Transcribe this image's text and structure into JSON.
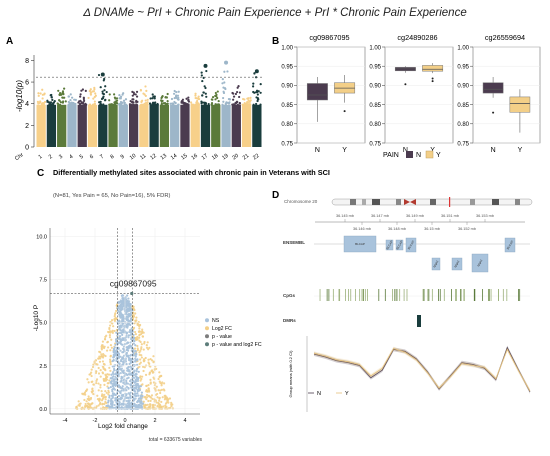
{
  "figure_title": "Δ DNAMe ~ PrI + Chronic Pain Experience + PrI * Chronic Pain Experience",
  "panel_letters": [
    "A",
    "B",
    "C",
    "D"
  ],
  "chart_data": [
    {
      "panel": "A",
      "type": "scatter",
      "subtype": "manhattan",
      "ylabel": "-log10(p)",
      "x_tick_labels": [
        "Chr",
        "1",
        "2",
        "3",
        "4",
        "5",
        "6",
        "7",
        "8",
        "9",
        "10",
        "11",
        "12",
        "13",
        "14",
        "15",
        "16",
        "17",
        "18",
        "19",
        "20",
        "21",
        "22"
      ],
      "ylim": [
        0,
        8.5
      ],
      "y_ticks": [
        0,
        2,
        4,
        6,
        8
      ],
      "y_tick_labels": [
        "0",
        "2",
        "4",
        "6",
        "8"
      ],
      "threshold": 6.45,
      "chromosomes": [
        {
          "chr": "1",
          "max": 5.3,
          "color": "#f7d08a"
        },
        {
          "chr": "2",
          "max": 4.9,
          "color": "#1a3d3d"
        },
        {
          "chr": "3",
          "max": 5.4,
          "color": "#5b7a3a"
        },
        {
          "chr": "4",
          "max": 4.9,
          "color": "#9db6c9"
        },
        {
          "chr": "5",
          "max": 5.4,
          "color": "#4b3b4f"
        },
        {
          "chr": "6",
          "max": 5.5,
          "color": "#f7d08a"
        },
        {
          "chr": "7",
          "max": 6.7,
          "color": "#1a3d3d"
        },
        {
          "chr": "8",
          "max": 4.9,
          "color": "#5b7a3a"
        },
        {
          "chr": "9",
          "max": 5.2,
          "color": "#9db6c9"
        },
        {
          "chr": "10",
          "max": 5.2,
          "color": "#4b3b4f"
        },
        {
          "chr": "11",
          "max": 5.9,
          "color": "#f7d08a"
        },
        {
          "chr": "12",
          "max": 4.9,
          "color": "#1a3d3d"
        },
        {
          "chr": "13",
          "max": 4.9,
          "color": "#5b7a3a"
        },
        {
          "chr": "14",
          "max": 5.2,
          "color": "#9db6c9"
        },
        {
          "chr": "15",
          "max": 4.7,
          "color": "#4b3b4f"
        },
        {
          "chr": "16",
          "max": 5.0,
          "color": "#f7d08a"
        },
        {
          "chr": "17",
          "max": 7.5,
          "color": "#1a3d3d"
        },
        {
          "chr": "18",
          "max": 5.5,
          "color": "#5b7a3a"
        },
        {
          "chr": "19",
          "max": 7.8,
          "color": "#9db6c9"
        },
        {
          "chr": "20",
          "max": 5.8,
          "color": "#4b3b4f"
        },
        {
          "chr": "21",
          "max": 4.6,
          "color": "#f7d08a"
        },
        {
          "chr": "22",
          "max": 7.0,
          "color": "#1a3d3d"
        }
      ]
    },
    {
      "panel": "B",
      "type": "box",
      "xlabel": "",
      "ylabel": "",
      "ylim": [
        0.75,
        1.0
      ],
      "y_ticks": [
        0.75,
        0.8,
        0.85,
        0.9,
        0.95,
        1.0
      ],
      "y_tick_labels": [
        "0.75",
        "0.80",
        "0.85",
        "0.90",
        "0.95",
        "1.00"
      ],
      "categories": [
        "N",
        "Y"
      ],
      "legend_title": "PAIN",
      "legend": [
        "N",
        "Y"
      ],
      "colors": {
        "N": "#4b3b4f",
        "Y": "#f3cf88"
      },
      "facets": [
        {
          "title": "cg09867095",
          "boxes": [
            {
              "group": "N",
              "min": 0.805,
              "q1": 0.862,
              "median": 0.875,
              "q3": 0.905,
              "max": 0.922,
              "outliers": []
            },
            {
              "group": "Y",
              "min": 0.855,
              "q1": 0.88,
              "median": 0.893,
              "q3": 0.907,
              "max": 0.927,
              "outliers": [
                0.833
              ]
            }
          ]
        },
        {
          "title": "cg24890286",
          "boxes": [
            {
              "group": "N",
              "min": 0.933,
              "q1": 0.938,
              "median": 0.943,
              "q3": 0.947,
              "max": 0.95,
              "outliers": [
                0.903
              ]
            },
            {
              "group": "Y",
              "min": 0.932,
              "q1": 0.937,
              "median": 0.942,
              "q3": 0.952,
              "max": 0.958,
              "outliers": [
                0.918,
                0.911
              ]
            }
          ]
        },
        {
          "title": "cg26559694",
          "boxes": [
            {
              "group": "N",
              "min": 0.868,
              "q1": 0.88,
              "median": 0.89,
              "q3": 0.907,
              "max": 0.922,
              "outliers": [
                0.829
              ]
            },
            {
              "group": "Y",
              "min": 0.777,
              "q1": 0.83,
              "median": 0.853,
              "q3": 0.87,
              "max": 0.89,
              "outliers": []
            }
          ]
        }
      ]
    },
    {
      "panel": "C",
      "type": "scatter",
      "subtype": "volcano",
      "title": "Differentially methylated sites associated with chronic pain in Veterans with SCI",
      "subtitle": "(N=81, Yes Pain = 65, No Pain=16), 5% FDR)",
      "xlabel": "Log2 fold change",
      "ylabel": "-Log10 P",
      "xlim": [
        -5,
        5
      ],
      "ylim": [
        -0.3,
        10.5
      ],
      "x_ticks": [
        -4,
        -2,
        0,
        2,
        4
      ],
      "y_ticks": [
        0,
        2.5,
        5,
        7.5,
        10
      ],
      "y_tick_labels": [
        "0.0",
        "2.5",
        "5.0",
        "7.5",
        "10.0"
      ],
      "threshold_p": 6.7,
      "fc_cutoffs": [
        -0.5,
        0.5
      ],
      "highlight": {
        "label": "cg09867095",
        "x": 0.45,
        "y": 6.7
      },
      "legend": [
        "NS",
        "Log2 FC",
        "p - value",
        "p - value and log2 FC"
      ],
      "legend_colors": [
        "#a9c3dc",
        "#f3cf88",
        "#7d7d7d",
        "#5d7d7a"
      ],
      "caption": "total = 633675 variables"
    },
    {
      "panel": "D",
      "type": "line",
      "title": "Chromosome 20",
      "axis_ticks": [
        "36.145 mb",
        "36.147 mb",
        "36.149 mb",
        "36.151 mb",
        "36.153 mb"
      ],
      "axis_ticks_minor": [
        "36.146 mb",
        "36.148 mb",
        "36.15 mb",
        "36.152 mb"
      ],
      "tracks": [
        "ENSEMBL",
        "CpGs",
        "DMRs"
      ],
      "genes": [
        "BLCAP",
        "NNAT",
        "NNAT",
        "NNAT",
        "BLCAP",
        "BLCAP",
        "BLCAP"
      ],
      "ylabel": "Group means (with 0.2 CI)",
      "legend": [
        "N",
        "Y"
      ],
      "colors": {
        "N": "#4b3b4f",
        "Y": "#e6c27c"
      },
      "x": [
        1,
        2,
        3,
        4,
        5,
        6,
        7,
        8,
        9,
        10,
        11,
        12,
        13,
        14,
        15,
        16,
        17,
        18,
        19,
        20
      ],
      "series": [
        {
          "name": "N",
          "values": [
            0.55,
            0.52,
            0.48,
            0.46,
            0.43,
            0.3,
            0.38,
            0.6,
            0.58,
            0.5,
            0.36,
            0.18,
            0.32,
            0.46,
            0.44,
            0.4,
            0.28,
            0.62,
            0.38,
            0.15
          ]
        },
        {
          "name": "Y",
          "values": [
            0.56,
            0.53,
            0.49,
            0.47,
            0.44,
            0.32,
            0.4,
            0.61,
            0.57,
            0.49,
            0.35,
            0.19,
            0.31,
            0.45,
            0.43,
            0.41,
            0.29,
            0.6,
            0.37,
            0.16
          ]
        }
      ]
    }
  ]
}
